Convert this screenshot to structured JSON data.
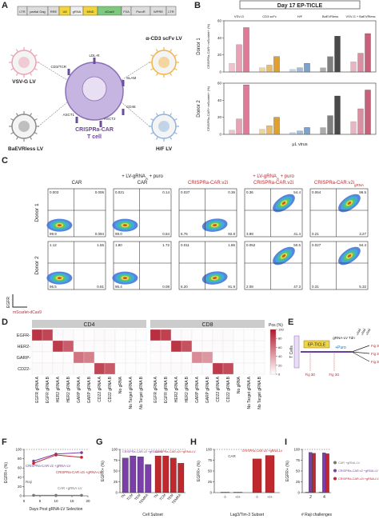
{
  "panel_a": {
    "letter": "A",
    "construct": [
      "LTR",
      "partial Gag",
      "RRE",
      "U6",
      "gRNA",
      "MND",
      "dCas9",
      "P2A",
      "PuroR",
      "WPRE",
      "LTR"
    ],
    "viruses": [
      "VSV-G LV",
      "α-CD3 scFv LV",
      "BaEVRless LV",
      "H/F LV"
    ],
    "receptors": [
      "LDL-R",
      "CD3/TCR",
      "ASCT1",
      "ASCT2",
      "SLAM",
      "CD46"
    ],
    "cell_label": [
      "CRISPRa-CAR",
      "T cell"
    ]
  },
  "panel_b": {
    "letter": "B",
    "title": "Day 17 EP-TICLE",
    "groups": [
      "VSV-G",
      "CD3 scFv",
      "H/F",
      "BaEVRless",
      "VSV-G + BaEVRless"
    ],
    "colors": [
      "#e07a98",
      "#e0a030",
      "#7aa3cf",
      "#4a4a4a",
      "#c9607a"
    ],
    "y_label": "CRISPRa-CAR+ mScarlet+ (%)",
    "x_label": "μL virus",
    "ylim": [
      0,
      60
    ],
    "yticks": [
      0,
      20,
      40,
      60
    ],
    "donors": [
      {
        "name": "Donor 1",
        "values": [
          [
            10,
            32,
            52
          ],
          [
            5,
            8,
            18
          ],
          [
            3,
            5,
            10
          ],
          [
            5,
            18,
            42
          ],
          [
            12,
            22,
            45
          ]
        ]
      },
      {
        "name": "Donor 2",
        "values": [
          [
            5,
            18,
            58
          ],
          [
            6,
            10,
            20
          ],
          [
            2,
            4,
            8
          ],
          [
            8,
            22,
            45
          ],
          [
            15,
            30,
            52
          ]
        ]
      }
    ]
  },
  "panel_c": {
    "letter": "C",
    "y_label": "EGFR",
    "x_label": "mScarlet-dCas9",
    "columns": [
      {
        "lines": [
          [
            {
              "t": "CAR"
            }
          ]
        ],
        "color": "#222"
      },
      {
        "lines": [
          [
            {
              "t": "+ LV-gRNA"
            },
            {
              "t": "A",
              "sub": true
            },
            {
              "t": " + puro"
            }
          ],
          [
            {
              "t": "CAR"
            }
          ]
        ],
        "color": "#222"
      },
      {
        "lines": [
          [
            {
              "t": "CRISPRa-CAR.v2i"
            }
          ]
        ],
        "color": "#c0282d"
      },
      {
        "lines": [
          [
            {
              "t": "+ LV-gRNA"
            },
            {
              "t": "A",
              "sub": true
            },
            {
              "t": " + puro"
            }
          ],
          [
            {
              "t": "CRISPRa-CAR.v2i"
            }
          ]
        ],
        "color": "#c0282d"
      },
      {
        "lines": [
          [
            {
              "t": "CRISPRa-CAR.v2i"
            },
            {
              "t": "gRNA",
              "sub": true
            }
          ]
        ],
        "color": "#c0282d"
      }
    ],
    "donors": [
      {
        "name": "Donor 1",
        "quadrants": [
          [
            "0.003",
            "0.006",
            "99.9",
            "0.094"
          ],
          [
            "0.021",
            "0.14",
            "99.0",
            "0.84"
          ],
          [
            "0.037",
            "0.36",
            "6.76",
            "92.8"
          ],
          [
            "0.36",
            "54.4",
            "3.89",
            "41.4"
          ],
          [
            "0.064",
            "96.5",
            "0.21",
            "3.27"
          ]
        ]
      },
      {
        "name": "Donor 2",
        "quadrants": [
          [
            "1.12",
            "1.55",
            "96.5",
            "0.81"
          ],
          [
            "1.80",
            "1.72",
            "96.4",
            "0.08"
          ],
          [
            "0.011",
            "1.86",
            "6.20",
            "91.9"
          ],
          [
            "0.052",
            "50.5",
            "2.08",
            "47.3"
          ],
          [
            "0.027",
            "94.4",
            "0.31",
            "5.32"
          ]
        ]
      }
    ]
  },
  "panel_d": {
    "letter": "D",
    "groups": [
      "CD4",
      "CD8"
    ],
    "rows": [
      "EGFR-",
      "HER2-",
      "GARP-",
      "CD22-"
    ],
    "columns": [
      "EGFR gRNA A",
      "EGFR gRNA B",
      "HER2 gRNA A",
      "HER2 gRNA B",
      "GARP gRNA A",
      "GARP gRNA B",
      "CD22 gRNA A",
      "CD22 gRNA B",
      "No gRNA",
      "No Target gRNA A",
      "No Target gRNA B"
    ],
    "values": [
      [
        [
          88,
          80,
          2,
          2,
          1,
          1,
          2,
          2,
          1,
          1,
          1
        ],
        [
          2,
          2,
          85,
          70,
          2,
          2,
          2,
          2,
          1,
          1,
          1
        ],
        [
          1,
          1,
          1,
          1,
          60,
          55,
          1,
          1,
          1,
          1,
          1
        ],
        [
          2,
          2,
          2,
          2,
          2,
          2,
          80,
          72,
          1,
          1,
          1
        ]
      ],
      [
        [
          90,
          82,
          2,
          2,
          1,
          1,
          2,
          2,
          1,
          1,
          1
        ],
        [
          2,
          2,
          88,
          75,
          2,
          2,
          2,
          2,
          1,
          1,
          1
        ],
        [
          1,
          1,
          1,
          1,
          50,
          45,
          1,
          1,
          1,
          1,
          1
        ],
        [
          2,
          2,
          2,
          2,
          2,
          2,
          85,
          78,
          1,
          1,
          1
        ]
      ]
    ],
    "legend_title": "Pos (%)",
    "legend_ticks": [
      0,
      20,
      40,
      60,
      80,
      100
    ]
  },
  "panel_e": {
    "letter": "E",
    "t_cells": "T Cells",
    "ep_ticle": "EP-TICLE",
    "puro": "+Puro",
    "grna_lv": "gRNA-LV Tdn",
    "raji": "+Raji",
    "figs": [
      "Fig 3D",
      "Fig 3G",
      "Fig 3H, I",
      "Fig 3I",
      "Fig 3F"
    ]
  },
  "panel_f": {
    "letter": "F",
    "y_label": "EGFR+ (%)",
    "x_label": "Days Post gRNA-LV Selection",
    "raji": "Raji",
    "xlim": [
      0,
      20
    ],
    "xticks": [
      0,
      5,
      10,
      15,
      20
    ],
    "ylim": [
      0,
      100
    ],
    "yticks": [
      0,
      20,
      40,
      60,
      80,
      100
    ],
    "x": [
      3,
      10,
      18
    ],
    "series": [
      {
        "name": "CRISPRa-CAR.v2 +gRNA-LV",
        "color": "#7a3fa8",
        "values": [
          75,
          90,
          93
        ]
      },
      {
        "name": "CRISPRa-CAR.v2i +gRNA-LV",
        "color": "#c0282d",
        "values": [
          70,
          88,
          83
        ]
      },
      {
        "name": "CAR +gRNA-LV",
        "color": "#777777",
        "values": [
          1,
          1,
          1
        ]
      }
    ]
  },
  "panel_g": {
    "letter": "G",
    "y_label": "EGFR+ (%)",
    "x_label": "Cell Subset",
    "categories": [
      "TN",
      "TCM",
      "TEM",
      "TEMRA"
    ],
    "ylim": [
      0,
      100
    ],
    "yticks": [
      0,
      25,
      50,
      75,
      100
    ],
    "series": [
      {
        "name": "CRISPRa-CAR.v2 +gRNA-LV",
        "color": "#7a3fa8",
        "values": [
          80,
          85,
          83,
          65
        ]
      },
      {
        "name": "CRISPRa-CAR.v2i +gRNA-LV",
        "color": "#c0282d",
        "values": [
          85,
          85,
          80,
          68
        ]
      }
    ]
  },
  "panel_h": {
    "letter": "H",
    "y_label": "EGFR+ (%)",
    "x_label": "Lag3/Tim-3 Subset",
    "categories": [
      "-/-",
      "+/+"
    ],
    "ylim": [
      0,
      100
    ],
    "yticks": [
      0,
      25,
      50,
      75,
      100
    ],
    "series": [
      {
        "name": "CAR",
        "color": "#777777",
        "values": [
          1,
          1
        ]
      },
      {
        "name": "CRISPRa-CAR.v2i +gRNA-LV",
        "color": "#c0282d",
        "values": [
          78,
          86
        ]
      }
    ]
  },
  "panel_i": {
    "letter": "I",
    "y_label": "EGFR+ (%)",
    "x_label": "# Raji challenges",
    "categories": [
      2,
      4
    ],
    "ylim": [
      0,
      100
    ],
    "yticks": [
      0,
      25,
      50,
      75,
      100
    ],
    "series": [
      {
        "name": "CAR +gRNA-LV",
        "color": "#777777",
        "values": [
          1,
          1
        ]
      },
      {
        "name": "CRISPRa-CAR.v2 +gRNA-LV",
        "color": "#7a3fa8",
        "values": [
          93,
          92
        ]
      },
      {
        "name": "CRISPRa-CAR.v2i +gRNA-LV",
        "color": "#c0282d",
        "values": [
          91,
          90
        ]
      }
    ]
  }
}
